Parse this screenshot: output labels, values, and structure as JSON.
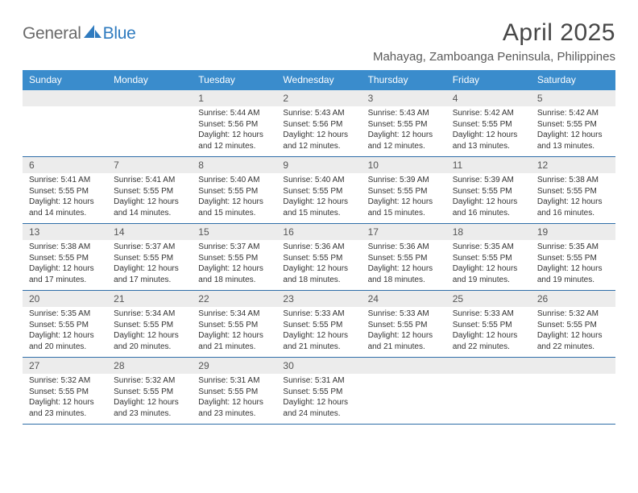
{
  "brand": {
    "general": "General",
    "blue": "Blue"
  },
  "header": {
    "title": "April 2025",
    "location": "Mahayag, Zamboanga Peninsula, Philippines"
  },
  "colors": {
    "header_bar": "#3a8ccc",
    "header_text": "#ffffff",
    "daynum_band": "#ececec",
    "week_border": "#2f6ea8",
    "logo_gray": "#6a6a6a",
    "logo_blue": "#2f7bbf",
    "body_text": "#333333",
    "title_text": "#474747",
    "background": "#ffffff"
  },
  "typography": {
    "title_fontsize": 30,
    "location_fontsize": 15,
    "weekday_fontsize": 12,
    "daynum_fontsize": 12,
    "body_fontsize": 10,
    "logo_fontsize": 21
  },
  "weekdays": [
    "Sunday",
    "Monday",
    "Tuesday",
    "Wednesday",
    "Thursday",
    "Friday",
    "Saturday"
  ],
  "weeks": [
    [
      {
        "n": "",
        "sunrise": "",
        "sunset": "",
        "daylight1": "",
        "daylight2": ""
      },
      {
        "n": "",
        "sunrise": "",
        "sunset": "",
        "daylight1": "",
        "daylight2": ""
      },
      {
        "n": "1",
        "sunrise": "Sunrise: 5:44 AM",
        "sunset": "Sunset: 5:56 PM",
        "daylight1": "Daylight: 12 hours",
        "daylight2": "and 12 minutes."
      },
      {
        "n": "2",
        "sunrise": "Sunrise: 5:43 AM",
        "sunset": "Sunset: 5:56 PM",
        "daylight1": "Daylight: 12 hours",
        "daylight2": "and 12 minutes."
      },
      {
        "n": "3",
        "sunrise": "Sunrise: 5:43 AM",
        "sunset": "Sunset: 5:55 PM",
        "daylight1": "Daylight: 12 hours",
        "daylight2": "and 12 minutes."
      },
      {
        "n": "4",
        "sunrise": "Sunrise: 5:42 AM",
        "sunset": "Sunset: 5:55 PM",
        "daylight1": "Daylight: 12 hours",
        "daylight2": "and 13 minutes."
      },
      {
        "n": "5",
        "sunrise": "Sunrise: 5:42 AM",
        "sunset": "Sunset: 5:55 PM",
        "daylight1": "Daylight: 12 hours",
        "daylight2": "and 13 minutes."
      }
    ],
    [
      {
        "n": "6",
        "sunrise": "Sunrise: 5:41 AM",
        "sunset": "Sunset: 5:55 PM",
        "daylight1": "Daylight: 12 hours",
        "daylight2": "and 14 minutes."
      },
      {
        "n": "7",
        "sunrise": "Sunrise: 5:41 AM",
        "sunset": "Sunset: 5:55 PM",
        "daylight1": "Daylight: 12 hours",
        "daylight2": "and 14 minutes."
      },
      {
        "n": "8",
        "sunrise": "Sunrise: 5:40 AM",
        "sunset": "Sunset: 5:55 PM",
        "daylight1": "Daylight: 12 hours",
        "daylight2": "and 15 minutes."
      },
      {
        "n": "9",
        "sunrise": "Sunrise: 5:40 AM",
        "sunset": "Sunset: 5:55 PM",
        "daylight1": "Daylight: 12 hours",
        "daylight2": "and 15 minutes."
      },
      {
        "n": "10",
        "sunrise": "Sunrise: 5:39 AM",
        "sunset": "Sunset: 5:55 PM",
        "daylight1": "Daylight: 12 hours",
        "daylight2": "and 15 minutes."
      },
      {
        "n": "11",
        "sunrise": "Sunrise: 5:39 AM",
        "sunset": "Sunset: 5:55 PM",
        "daylight1": "Daylight: 12 hours",
        "daylight2": "and 16 minutes."
      },
      {
        "n": "12",
        "sunrise": "Sunrise: 5:38 AM",
        "sunset": "Sunset: 5:55 PM",
        "daylight1": "Daylight: 12 hours",
        "daylight2": "and 16 minutes."
      }
    ],
    [
      {
        "n": "13",
        "sunrise": "Sunrise: 5:38 AM",
        "sunset": "Sunset: 5:55 PM",
        "daylight1": "Daylight: 12 hours",
        "daylight2": "and 17 minutes."
      },
      {
        "n": "14",
        "sunrise": "Sunrise: 5:37 AM",
        "sunset": "Sunset: 5:55 PM",
        "daylight1": "Daylight: 12 hours",
        "daylight2": "and 17 minutes."
      },
      {
        "n": "15",
        "sunrise": "Sunrise: 5:37 AM",
        "sunset": "Sunset: 5:55 PM",
        "daylight1": "Daylight: 12 hours",
        "daylight2": "and 18 minutes."
      },
      {
        "n": "16",
        "sunrise": "Sunrise: 5:36 AM",
        "sunset": "Sunset: 5:55 PM",
        "daylight1": "Daylight: 12 hours",
        "daylight2": "and 18 minutes."
      },
      {
        "n": "17",
        "sunrise": "Sunrise: 5:36 AM",
        "sunset": "Sunset: 5:55 PM",
        "daylight1": "Daylight: 12 hours",
        "daylight2": "and 18 minutes."
      },
      {
        "n": "18",
        "sunrise": "Sunrise: 5:35 AM",
        "sunset": "Sunset: 5:55 PM",
        "daylight1": "Daylight: 12 hours",
        "daylight2": "and 19 minutes."
      },
      {
        "n": "19",
        "sunrise": "Sunrise: 5:35 AM",
        "sunset": "Sunset: 5:55 PM",
        "daylight1": "Daylight: 12 hours",
        "daylight2": "and 19 minutes."
      }
    ],
    [
      {
        "n": "20",
        "sunrise": "Sunrise: 5:35 AM",
        "sunset": "Sunset: 5:55 PM",
        "daylight1": "Daylight: 12 hours",
        "daylight2": "and 20 minutes."
      },
      {
        "n": "21",
        "sunrise": "Sunrise: 5:34 AM",
        "sunset": "Sunset: 5:55 PM",
        "daylight1": "Daylight: 12 hours",
        "daylight2": "and 20 minutes."
      },
      {
        "n": "22",
        "sunrise": "Sunrise: 5:34 AM",
        "sunset": "Sunset: 5:55 PM",
        "daylight1": "Daylight: 12 hours",
        "daylight2": "and 21 minutes."
      },
      {
        "n": "23",
        "sunrise": "Sunrise: 5:33 AM",
        "sunset": "Sunset: 5:55 PM",
        "daylight1": "Daylight: 12 hours",
        "daylight2": "and 21 minutes."
      },
      {
        "n": "24",
        "sunrise": "Sunrise: 5:33 AM",
        "sunset": "Sunset: 5:55 PM",
        "daylight1": "Daylight: 12 hours",
        "daylight2": "and 21 minutes."
      },
      {
        "n": "25",
        "sunrise": "Sunrise: 5:33 AM",
        "sunset": "Sunset: 5:55 PM",
        "daylight1": "Daylight: 12 hours",
        "daylight2": "and 22 minutes."
      },
      {
        "n": "26",
        "sunrise": "Sunrise: 5:32 AM",
        "sunset": "Sunset: 5:55 PM",
        "daylight1": "Daylight: 12 hours",
        "daylight2": "and 22 minutes."
      }
    ],
    [
      {
        "n": "27",
        "sunrise": "Sunrise: 5:32 AM",
        "sunset": "Sunset: 5:55 PM",
        "daylight1": "Daylight: 12 hours",
        "daylight2": "and 23 minutes."
      },
      {
        "n": "28",
        "sunrise": "Sunrise: 5:32 AM",
        "sunset": "Sunset: 5:55 PM",
        "daylight1": "Daylight: 12 hours",
        "daylight2": "and 23 minutes."
      },
      {
        "n": "29",
        "sunrise": "Sunrise: 5:31 AM",
        "sunset": "Sunset: 5:55 PM",
        "daylight1": "Daylight: 12 hours",
        "daylight2": "and 23 minutes."
      },
      {
        "n": "30",
        "sunrise": "Sunrise: 5:31 AM",
        "sunset": "Sunset: 5:55 PM",
        "daylight1": "Daylight: 12 hours",
        "daylight2": "and 24 minutes."
      },
      {
        "n": "",
        "sunrise": "",
        "sunset": "",
        "daylight1": "",
        "daylight2": ""
      },
      {
        "n": "",
        "sunrise": "",
        "sunset": "",
        "daylight1": "",
        "daylight2": ""
      },
      {
        "n": "",
        "sunrise": "",
        "sunset": "",
        "daylight1": "",
        "daylight2": ""
      }
    ]
  ]
}
